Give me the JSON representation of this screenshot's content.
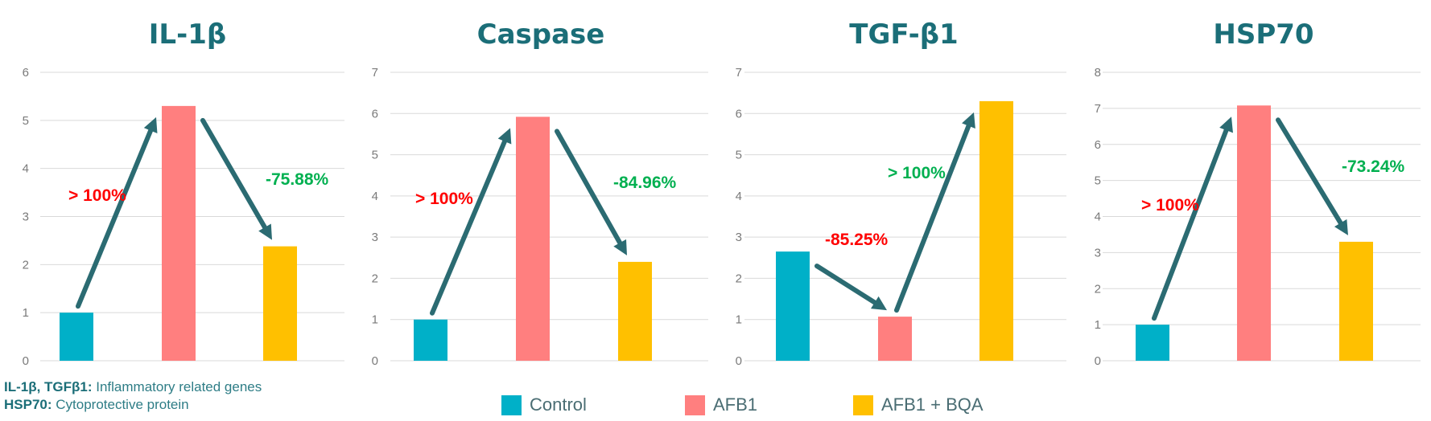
{
  "colors": {
    "control": "#00b0c8",
    "afb1": "#ff7f7f",
    "afb1_bqa": "#ffc000",
    "increase": "#ff0000",
    "decrease": "#00b050",
    "arrow": "#2b6b72",
    "title": "#1b6e78"
  },
  "chart_data": [
    {
      "type": "bar",
      "title": "IL-1β",
      "categories": [
        "Control",
        "AFB1",
        "AFB1 + BQA"
      ],
      "values": [
        1.0,
        5.3,
        2.38
      ],
      "ylim": [
        0,
        6
      ],
      "ytick_labels": [
        "0",
        "1",
        "2",
        "3",
        "4",
        "5",
        "6"
      ],
      "annotations": [
        {
          "text": "> 100%",
          "kind": "increase",
          "from": 0,
          "to": 1
        },
        {
          "text": "-75.88%",
          "kind": "decrease",
          "from": 1,
          "to": 2
        }
      ]
    },
    {
      "type": "bar",
      "title": "Caspase",
      "categories": [
        "Control",
        "AFB1",
        "AFB1 + BQA"
      ],
      "values": [
        1.0,
        5.92,
        2.4
      ],
      "ylim": [
        0,
        7
      ],
      "ytick_labels": [
        "0",
        "1",
        "2",
        "3",
        "4",
        "5",
        "6",
        "7"
      ],
      "annotations": [
        {
          "text": "> 100%",
          "kind": "increase",
          "from": 0,
          "to": 1
        },
        {
          "text": "-84.96%",
          "kind": "decrease",
          "from": 1,
          "to": 2
        }
      ]
    },
    {
      "type": "bar",
      "title": "TGF-β1",
      "categories": [
        "Control",
        "AFB1",
        "AFB1 + BQA"
      ],
      "values": [
        2.65,
        1.07,
        6.3
      ],
      "ylim": [
        0,
        7
      ],
      "ytick_labels": [
        "0",
        "1",
        "2",
        "3",
        "4",
        "5",
        "6",
        "7"
      ],
      "annotations": [
        {
          "text": "-85.25%",
          "kind": "increase",
          "from": 0,
          "to": 1
        },
        {
          "text": "> 100%",
          "kind": "decrease",
          "from": 1,
          "to": 2
        }
      ]
    },
    {
      "type": "bar",
      "title": "HSP70",
      "categories": [
        "Control",
        "AFB1",
        "AFB1 + BQA"
      ],
      "values": [
        1.0,
        7.08,
        3.3
      ],
      "ylim": [
        0,
        8
      ],
      "ytick_labels": [
        "0",
        "1",
        "2",
        "3",
        "4",
        "5",
        "6",
        "7",
        "8"
      ],
      "annotations": [
        {
          "text": "> 100%",
          "kind": "increase",
          "from": 0,
          "to": 1
        },
        {
          "text": "-73.24%",
          "kind": "decrease",
          "from": 1,
          "to": 2
        }
      ]
    }
  ],
  "notes": [
    {
      "bold": "IL-1β, TGFβ1:",
      "text": " Inflammatory related genes"
    },
    {
      "bold": "HSP70:",
      "text": " Cytoprotective protein"
    }
  ],
  "legend": [
    {
      "label": "Control",
      "color_key": "control"
    },
    {
      "label": "AFB1",
      "color_key": "afb1"
    },
    {
      "label": "AFB1 + BQA",
      "color_key": "afb1_bqa"
    }
  ]
}
